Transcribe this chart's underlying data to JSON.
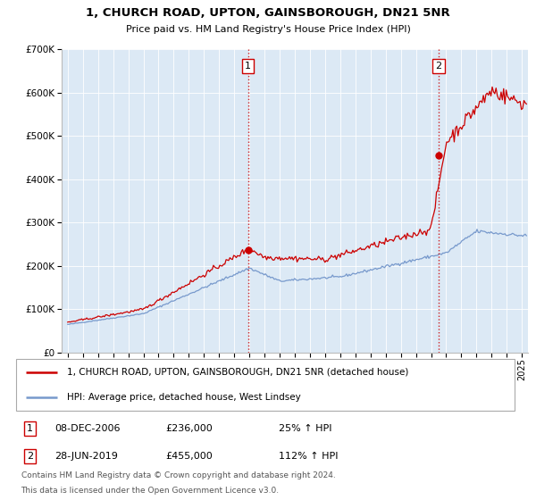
{
  "title": "1, CHURCH ROAD, UPTON, GAINSBOROUGH, DN21 5NR",
  "subtitle": "Price paid vs. HM Land Registry's House Price Index (HPI)",
  "bg_color": "#dce9f5",
  "red_line_color": "#cc0000",
  "blue_line_color": "#7799cc",
  "legend_label_red": "1, CHURCH ROAD, UPTON, GAINSBOROUGH, DN21 5NR (detached house)",
  "legend_label_blue": "HPI: Average price, detached house, West Lindsey",
  "transaction1_date": "08-DEC-2006",
  "transaction1_price": "£236,000",
  "transaction1_hpi": "25% ↑ HPI",
  "transaction2_date": "28-JUN-2019",
  "transaction2_price": "£455,000",
  "transaction2_hpi": "112% ↑ HPI",
  "footnote1": "Contains HM Land Registry data © Crown copyright and database right 2024.",
  "footnote2": "This data is licensed under the Open Government Licence v3.0.",
  "ylim_max": 700000,
  "yticks": [
    0,
    100000,
    200000,
    300000,
    400000,
    500000,
    600000,
    700000
  ],
  "transaction1_x": 2006.92,
  "transaction1_y": 236000,
  "transaction2_x": 2019.5,
  "transaction2_y": 455000,
  "vline1_x": 2006.92,
  "vline2_x": 2019.5,
  "xlim_min": 1994.6,
  "xlim_max": 2025.4
}
